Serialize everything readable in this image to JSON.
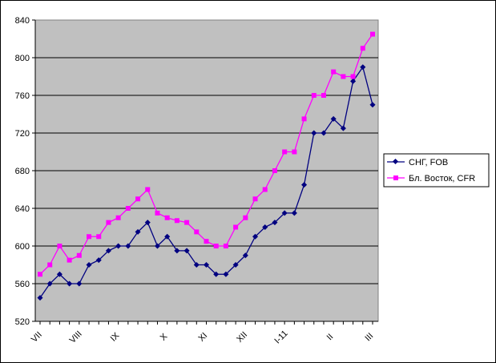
{
  "chart_data": {
    "type": "line",
    "title": "",
    "xlabel": "",
    "ylabel": "",
    "ylim": [
      520,
      840
    ],
    "yticks": [
      520,
      560,
      600,
      640,
      680,
      720,
      760,
      800,
      840
    ],
    "grid": true,
    "legend_position": "right",
    "x_tick_labels": [
      {
        "label": "VII",
        "index": 0
      },
      {
        "label": "VIII",
        "index": 4
      },
      {
        "label": "IX",
        "index": 8
      },
      {
        "label": "X",
        "index": 13
      },
      {
        "label": "XI",
        "index": 17
      },
      {
        "label": "XII",
        "index": 21
      },
      {
        "label": "I-11",
        "index": 25
      },
      {
        "label": "II",
        "index": 30
      },
      {
        "label": "III",
        "index": 34
      }
    ],
    "series": [
      {
        "name": "СНГ, FOB",
        "color": "#000080",
        "marker": "diamond",
        "values": [
          545,
          560,
          570,
          560,
          560,
          580,
          585,
          595,
          600,
          600,
          615,
          625,
          600,
          610,
          595,
          595,
          580,
          580,
          570,
          570,
          580,
          590,
          610,
          620,
          625,
          635,
          635,
          665,
          720,
          720,
          735,
          725,
          775,
          790,
          750
        ]
      },
      {
        "name": "Бл. Восток, CFR",
        "color": "#ff00ff",
        "marker": "square",
        "values": [
          570,
          580,
          600,
          585,
          590,
          610,
          610,
          625,
          630,
          640,
          650,
          660,
          635,
          630,
          627,
          625,
          615,
          605,
          600,
          600,
          620,
          630,
          650,
          660,
          680,
          700,
          700,
          735,
          760,
          760,
          785,
          780,
          780,
          810,
          825
        ]
      }
    ]
  }
}
